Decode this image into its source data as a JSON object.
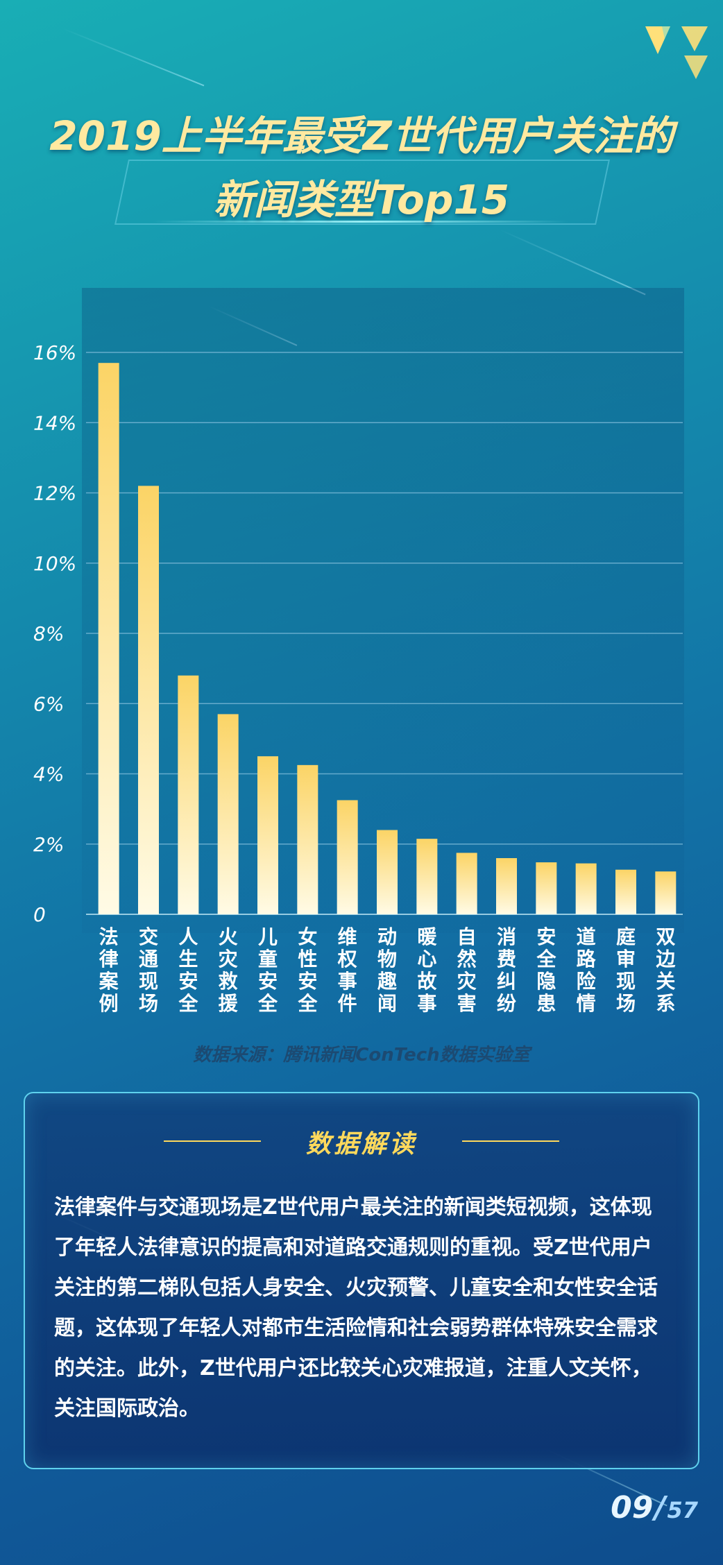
{
  "title": {
    "line1": "2019上半年最受Z世代用户关注的",
    "line2": "新闻类型Top15"
  },
  "colors": {
    "bar_top": "#fbd466",
    "bar_bottom": "#fffbe6",
    "grid": "#7ab9d8",
    "axis_text": "#ffffff",
    "accent": "#ffd95c"
  },
  "chart_data": {
    "type": "bar",
    "categories": [
      "法律案例",
      "交通现场",
      "人生安全",
      "火灾救援",
      "儿童安全",
      "女性安全",
      "维权事件",
      "动物趣闻",
      "暖心故事",
      "自然灾害",
      "消费纠纷",
      "安全隐患",
      "道路险情",
      "庭审现场",
      "双边关系"
    ],
    "values": [
      15.7,
      12.2,
      6.8,
      5.7,
      4.5,
      4.25,
      3.25,
      2.4,
      2.15,
      1.75,
      1.6,
      1.48,
      1.45,
      1.27,
      1.22
    ],
    "ylim": [
      0,
      16
    ],
    "yticks": [
      0,
      2,
      4,
      6,
      8,
      10,
      12,
      14,
      16
    ],
    "ytick_labels": [
      "0",
      "2%",
      "4%",
      "6%",
      "8%",
      "10%",
      "12%",
      "14%",
      "16%"
    ],
    "grid": true
  },
  "source": "数据来源：腾讯新闻ConTech数据实验室",
  "insight": {
    "heading": "数据解读",
    "body": "法律案件与交通现场是Z世代用户最关注的新闻类短视频，这体现了年轻人法律意识的提高和对道路交通规则的重视。受Z世代用户关注的第二梯队包括人身安全、火灾预警、儿童安全和女性安全话题，这体现了年轻人对都市生活险情和社会弱势群体特殊安全需求的关注。此外，Z世代用户还比较关心灾难报道，注重人文关怀，关注国际政治。"
  },
  "page": {
    "current": "09",
    "separator": "/",
    "total": "57"
  }
}
